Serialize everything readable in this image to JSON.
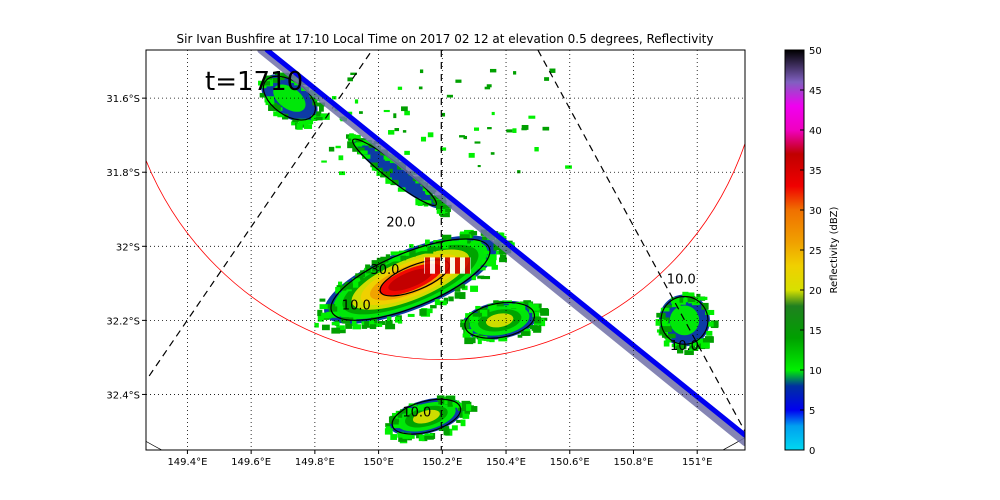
{
  "chart_data": {
    "type": "heatmap",
    "title": "Sir Ivan Bushfire at 17:10 Local Time on 2017 02 12 at elevation 0.5 degrees, Reflectivity",
    "time_label": "t=1710",
    "xlim": [
      149.27,
      151.15
    ],
    "ylim": [
      -32.55,
      -31.47
    ],
    "x_ticks": [
      149.4,
      149.6,
      149.8,
      150.0,
      150.2,
      150.4,
      150.6,
      150.8,
      151.0
    ],
    "x_tick_labels": [
      "149.4°E",
      "149.6°E",
      "149.8°E",
      "150°E",
      "150.2°E",
      "150.4°E",
      "150.6°E",
      "150.8°E",
      "151°E"
    ],
    "y_ticks": [
      -31.6,
      -31.8,
      -32.0,
      -32.2,
      -32.4
    ],
    "y_tick_labels": [
      "31.6°S",
      "31.8°S",
      "32°S",
      "32.2°S",
      "32.4°S"
    ],
    "grid": true,
    "colorbar": {
      "label": "Reflectivity (dBZ)",
      "range": [
        0,
        50
      ],
      "ticks": [
        0,
        5,
        10,
        15,
        20,
        25,
        30,
        35,
        40,
        45,
        50
      ],
      "tick_labels": [
        "0",
        "5",
        "10",
        "15",
        "20",
        "25",
        "30",
        "35",
        "40",
        "45",
        "50"
      ],
      "stops": [
        {
          "v": 0,
          "c": "#00d8f0"
        },
        {
          "v": 3,
          "c": "#00a0f0"
        },
        {
          "v": 5,
          "c": "#0000f0"
        },
        {
          "v": 8,
          "c": "#0030a0"
        },
        {
          "v": 10,
          "c": "#00f000"
        },
        {
          "v": 14,
          "c": "#00a000"
        },
        {
          "v": 18,
          "c": "#208020"
        },
        {
          "v": 20,
          "c": "#d8e000"
        },
        {
          "v": 23,
          "c": "#f0d000"
        },
        {
          "v": 26,
          "c": "#f0a000"
        },
        {
          "v": 30,
          "c": "#f07000"
        },
        {
          "v": 33,
          "c": "#f00000"
        },
        {
          "v": 37,
          "c": "#c00000"
        },
        {
          "v": 40,
          "c": "#f000c0"
        },
        {
          "v": 43,
          "c": "#f000f0"
        },
        {
          "v": 46,
          "c": "#8060c0"
        },
        {
          "v": 50,
          "c": "#000000"
        }
      ]
    },
    "contour_labels": [
      {
        "text": "20.0",
        "lon": 150.07,
        "lat": -31.947
      },
      {
        "text": "30.0",
        "lon": 150.02,
        "lat": -32.075
      },
      {
        "text": "10.0",
        "lon": 149.93,
        "lat": -32.17
      },
      {
        "text": "10.0",
        "lon": 150.12,
        "lat": -32.46
      },
      {
        "text": "10.0",
        "lon": 150.95,
        "lat": -32.1
      },
      {
        "text": "10.0",
        "lon": 150.96,
        "lat": -32.28
      }
    ],
    "echo_regions": [
      {
        "name": "main-cell",
        "lon": 150.1,
        "lat": -32.09,
        "rx": 0.29,
        "ry": 0.08,
        "angle": -22,
        "peak_dbz": 38
      },
      {
        "name": "main-cell-tail",
        "lon": 150.38,
        "lat": -32.2,
        "rx": 0.12,
        "ry": 0.05,
        "angle": -10,
        "peak_dbz": 22
      },
      {
        "name": "south-cell",
        "lon": 150.15,
        "lat": -32.46,
        "rx": 0.12,
        "ry": 0.045,
        "angle": -15,
        "peak_dbz": 22
      },
      {
        "name": "northwest-cell",
        "lon": 149.72,
        "lat": -31.6,
        "rx": 0.1,
        "ry": 0.05,
        "angle": 35,
        "peak_dbz": 15
      },
      {
        "name": "east-cell",
        "lon": 150.96,
        "lat": -32.2,
        "rx": 0.08,
        "ry": 0.07,
        "angle": 0,
        "peak_dbz": 15
      },
      {
        "name": "ridge-band",
        "lon": 150.05,
        "lat": -31.8,
        "rx": 0.18,
        "ry": 0.025,
        "angle": 38,
        "peak_dbz": 12
      }
    ]
  }
}
